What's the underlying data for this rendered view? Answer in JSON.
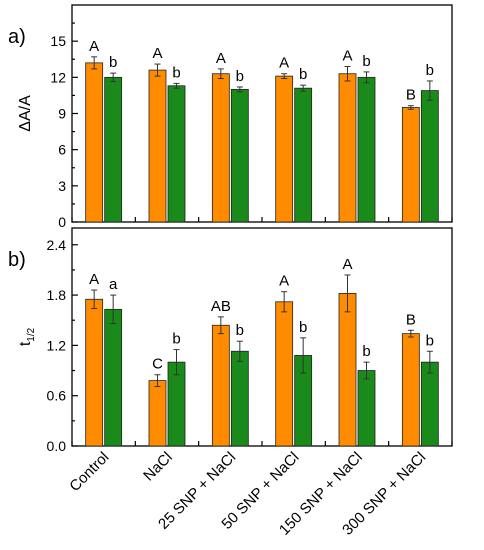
{
  "colors": {
    "series1": "#ff8c00",
    "series2": "#1a8a1a",
    "error_bar": "#333333"
  },
  "categories": [
    "Control",
    "NaCl",
    "25 SNP + NaCl",
    "50 SNP + NaCl",
    "150 SNP + NaCl",
    "300 SNP + NaCl"
  ],
  "chart_data": [
    {
      "type": "bar",
      "panel_label": "a)",
      "ylabel_main": "ΔA/A",
      "ylabel_sub": "",
      "ylim": [
        0,
        18
      ],
      "yticks": [
        0,
        3,
        6,
        9,
        12,
        15
      ],
      "ytick_labels": [
        "0",
        "3",
        "6",
        "9",
        "12",
        "15"
      ],
      "categories": [
        "Control",
        "NaCl",
        "25 SNP + NaCl",
        "50 SNP + NaCl",
        "150 SNP + NaCl",
        "300 SNP + NaCl"
      ],
      "series": [
        {
          "values": [
            13.2,
            12.6,
            12.3,
            12.1,
            12.3,
            9.5
          ],
          "errors": [
            0.5,
            0.5,
            0.4,
            0.2,
            0.6,
            0.15
          ],
          "letters": [
            "A",
            "A",
            "A",
            "A",
            "A",
            "B"
          ]
        },
        {
          "values": [
            12.0,
            11.3,
            11.0,
            11.1,
            12.0,
            10.9
          ],
          "errors": [
            0.35,
            0.2,
            0.2,
            0.25,
            0.45,
            0.8
          ],
          "letters": [
            "b",
            "b",
            "b",
            "b",
            "b",
            "b"
          ]
        }
      ]
    },
    {
      "type": "bar",
      "panel_label": "b)",
      "ylabel_main": "t",
      "ylabel_sub": "1/2",
      "ylim": [
        0,
        2.6
      ],
      "yticks": [
        0,
        0.6,
        1.2,
        1.8,
        2.4
      ],
      "ytick_labels": [
        "0.0",
        "0.6",
        "1.2",
        "1.8",
        "2.4"
      ],
      "categories": [
        "Control",
        "NaCl",
        "25 SNP + NaCl",
        "50 SNP + NaCl",
        "150 SNP + NaCl",
        "300 SNP + NaCl"
      ],
      "series": [
        {
          "values": [
            1.75,
            0.78,
            1.44,
            1.72,
            1.82,
            1.34
          ],
          "errors": [
            0.11,
            0.07,
            0.1,
            0.12,
            0.22,
            0.04
          ],
          "letters": [
            "A",
            "C",
            "AB",
            "A",
            "A",
            "B"
          ]
        },
        {
          "values": [
            1.63,
            1.0,
            1.13,
            1.08,
            0.9,
            1.0
          ],
          "errors": [
            0.17,
            0.15,
            0.12,
            0.21,
            0.1,
            0.13
          ],
          "letters": [
            "a",
            "b",
            "b",
            "b",
            "b",
            "b"
          ]
        }
      ]
    }
  ]
}
